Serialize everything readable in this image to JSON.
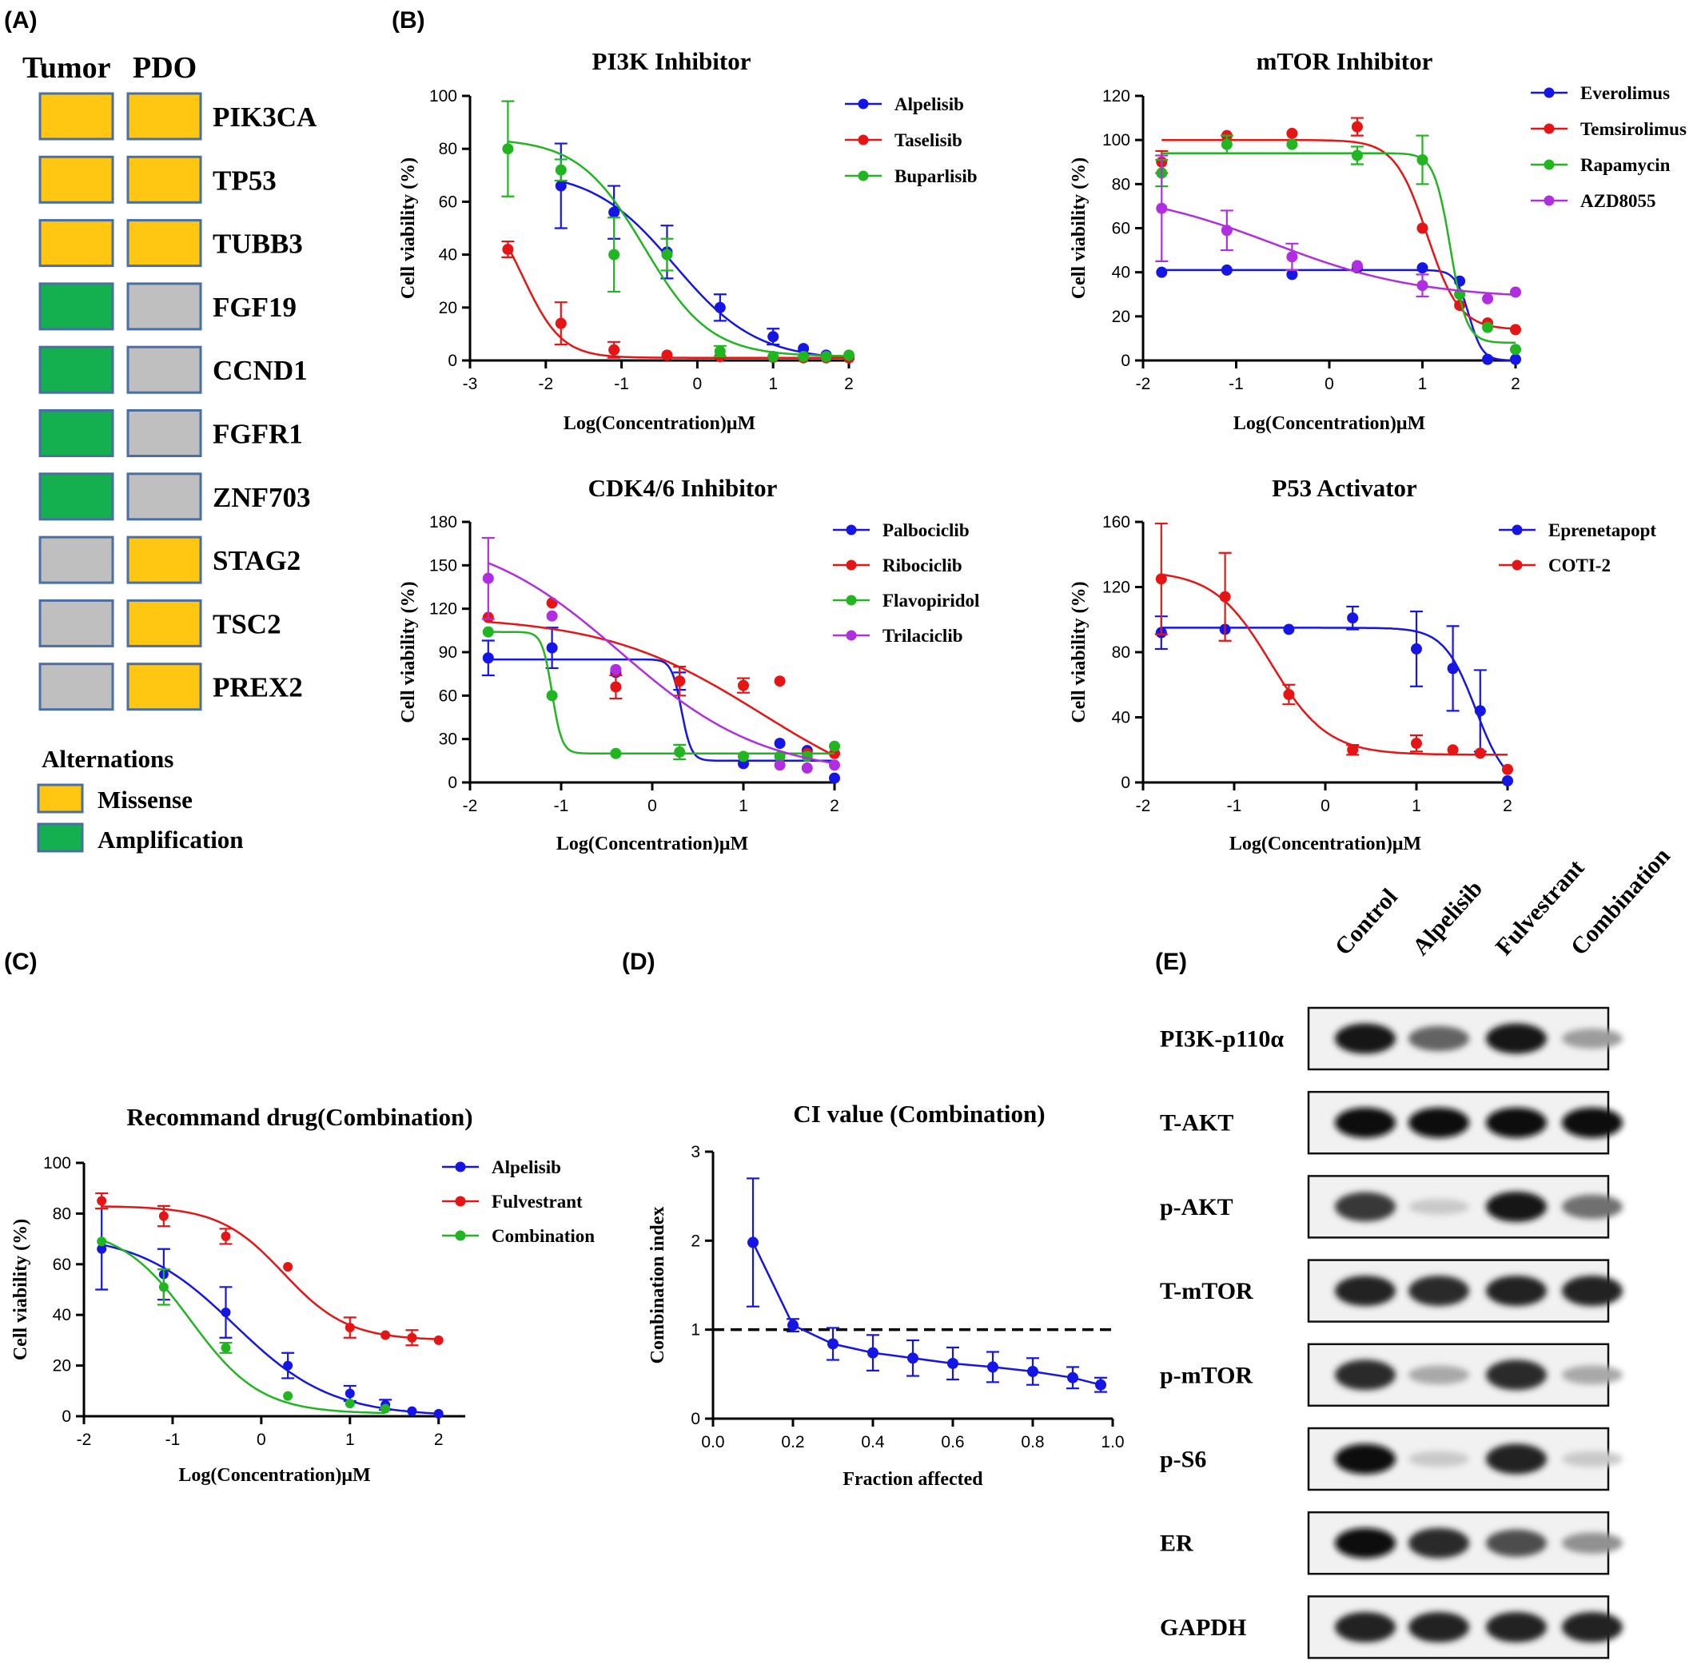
{
  "panel_labels": [
    "(A)",
    "(B)",
    "(C)",
    "(D)",
    "(E)"
  ],
  "panelA": {
    "header_tumor": "Tumor",
    "header_pdo": "PDO",
    "genes": [
      "PIK3CA",
      "TP53",
      "TUBB3",
      "FGF19",
      "CCND1",
      "FGFR1",
      "ZNF703",
      "STAG2",
      "TSC2",
      "PREX2"
    ],
    "tumor": [
      "Missense",
      "Missense",
      "Missense",
      "Amplification",
      "Amplification",
      "Amplification",
      "Amplification",
      "None",
      "None",
      "None"
    ],
    "pdo": [
      "Missense",
      "Missense",
      "Missense",
      "None",
      "None",
      "None",
      "None",
      "Missense",
      "Missense",
      "Missense"
    ],
    "legend_title": "Alternations",
    "legend": [
      {
        "label": "Missense",
        "key": "Missense"
      },
      {
        "label": "Amplification",
        "key": "Amplification"
      }
    ],
    "colors": {
      "Missense": "#FFC612",
      "Amplification": "#14B050",
      "None": "#BFBFBF",
      "border": "#4A6FA5"
    }
  },
  "chart_data": [
    {
      "id": "pi3k",
      "type": "scatter",
      "title": "PI3K Inhibitor",
      "xlabel": "Log(Concentration)μM",
      "ylabel": "Cell viability (%)",
      "xlim": [
        -3,
        2
      ],
      "ylim": [
        0,
        100
      ],
      "xticks": [
        -3,
        -2,
        -1,
        0,
        1,
        2
      ],
      "yticks": [
        0,
        20,
        40,
        60,
        80,
        100
      ],
      "legend_position": "top-right",
      "series": [
        {
          "name": "Alpelisib",
          "color": "#1515E6",
          "x": [
            -1.8,
            -1.1,
            -0.4,
            0.3,
            1.0,
            1.4,
            1.7,
            2.0
          ],
          "y": [
            66,
            56,
            41,
            20,
            9,
            4.5,
            2,
            1
          ],
          "err": [
            16,
            10,
            10,
            5,
            3,
            0,
            0,
            0
          ],
          "fit": {
            "top": 72,
            "bottom": 0,
            "logec50": -0.3,
            "hill": 0.8
          }
        },
        {
          "name": "Taselisib",
          "color": "#E61515",
          "x": [
            -2.5,
            -1.8,
            -1.1,
            -0.4,
            0.3,
            1.0,
            1.4,
            1.7,
            2.0
          ],
          "y": [
            42,
            14,
            4,
            2,
            1.5,
            1.2,
            1,
            1,
            1
          ],
          "err": [
            3,
            8,
            3,
            0,
            0,
            0,
            0,
            0,
            0
          ],
          "fit": {
            "top": 62,
            "bottom": 1,
            "logec50": -2.3,
            "hill": 1.7
          }
        },
        {
          "name": "Buparlisib",
          "color": "#22B522",
          "x": [
            -2.5,
            -1.8,
            -1.1,
            -0.4,
            0.3,
            1.0,
            1.4,
            1.7,
            2.0
          ],
          "y": [
            80,
            72,
            40,
            40,
            3.5,
            1.5,
            1.5,
            1.5,
            2
          ],
          "err": [
            18,
            4,
            14,
            6,
            2,
            0,
            0,
            0,
            0
          ],
          "fit": {
            "top": 84,
            "bottom": 1.5,
            "logec50": -0.7,
            "hill": 1.0
          }
        }
      ]
    },
    {
      "id": "mtor",
      "type": "scatter",
      "title": "mTOR Inhibitor",
      "xlabel": "Log(Concentration)μM",
      "ylabel": "Cell viability (%)",
      "xlim": [
        -2,
        2
      ],
      "ylim": [
        0,
        120
      ],
      "xticks": [
        -2,
        -1,
        0,
        1,
        2
      ],
      "yticks": [
        0,
        20,
        40,
        60,
        80,
        100,
        120
      ],
      "legend_position": "top-right",
      "series": [
        {
          "name": "Everolimus",
          "color": "#1515E6",
          "x": [
            -1.8,
            -1.1,
            -0.4,
            0.3,
            1.0,
            1.4,
            1.7,
            2.0
          ],
          "y": [
            40,
            41,
            39,
            42,
            42,
            36,
            0.5,
            0.5
          ],
          "err": [
            0,
            0,
            0,
            0,
            0,
            0,
            0,
            0
          ],
          "fit": {
            "top": 41,
            "bottom": 0,
            "logec50": 1.5,
            "hill": 6
          }
        },
        {
          "name": "Temsirolimus",
          "color": "#E61515",
          "x": [
            -1.8,
            -1.1,
            -0.4,
            0.3,
            1.0,
            1.4,
            1.7,
            2.0
          ],
          "y": [
            90,
            102,
            103,
            106,
            60,
            25,
            17,
            14
          ],
          "err": [
            5,
            0,
            0,
            4,
            0,
            0,
            0,
            0
          ],
          "fit": {
            "top": 100,
            "bottom": 14,
            "logec50": 1.05,
            "hill": 2.5
          }
        },
        {
          "name": "Rapamycin",
          "color": "#22B522",
          "x": [
            -1.8,
            -1.1,
            -0.4,
            0.3,
            1.0,
            1.4,
            1.7,
            2.0
          ],
          "y": [
            85,
            98,
            98,
            93,
            91,
            30,
            15,
            5
          ],
          "err": [
            6,
            4,
            0,
            4,
            11,
            0,
            0,
            0
          ],
          "fit": {
            "top": 94,
            "bottom": 8,
            "logec50": 1.3,
            "hill": 5
          }
        },
        {
          "name": "AZD8055",
          "color": "#B02EE0",
          "x": [
            -1.8,
            -1.1,
            -0.4,
            0.3,
            1.0,
            1.7,
            2.0
          ],
          "y": [
            69,
            59,
            47,
            43,
            34,
            28,
            31
          ],
          "err": [
            24,
            9,
            6,
            0,
            5,
            0,
            0
          ],
          "fit": {
            "top": 78,
            "bottom": 28,
            "logec50": -0.6,
            "hill": 0.55
          }
        }
      ]
    },
    {
      "id": "cdk",
      "type": "scatter",
      "title": "CDK4/6 Inhibitor",
      "xlabel": "Log(Concentration)μM",
      "ylabel": "Cell viability (%)",
      "xlim": [
        -2,
        2
      ],
      "ylim": [
        0,
        180
      ],
      "xticks": [
        -2,
        -1,
        0,
        1,
        2
      ],
      "yticks": [
        0,
        30,
        60,
        90,
        120,
        150,
        180
      ],
      "legend_position": "top-right",
      "series": [
        {
          "name": "Palbociclib",
          "color": "#1515E6",
          "x": [
            -1.8,
            -1.1,
            -0.4,
            0.3,
            1.0,
            1.4,
            1.7,
            2.0
          ],
          "y": [
            86,
            93,
            76,
            70,
            13,
            27,
            22,
            3
          ],
          "err": [
            12,
            14,
            0,
            6,
            0,
            0,
            0,
            0
          ],
          "fit": {
            "top": 85,
            "bottom": 15,
            "logec50": 0.32,
            "hill": 8
          }
        },
        {
          "name": "Ribociclib",
          "color": "#E61515",
          "x": [
            -1.8,
            -1.1,
            -0.4,
            0.3,
            1.0,
            1.4,
            1.7,
            2.0
          ],
          "y": [
            114,
            124,
            66,
            70,
            67,
            70,
            20,
            20
          ],
          "err": [
            0,
            0,
            8,
            10,
            5,
            0,
            0,
            0
          ],
          "fit": {
            "top": 115,
            "bottom": -20,
            "logec50": 1.2,
            "hill": 0.5
          }
        },
        {
          "name": "Flavopiridol",
          "color": "#22B522",
          "x": [
            -1.8,
            -1.1,
            -0.4,
            0.3,
            1.0,
            1.4,
            1.7,
            2.0
          ],
          "y": [
            104,
            60,
            20,
            21,
            18,
            18,
            18,
            25
          ],
          "err": [
            0,
            0,
            0,
            5,
            0,
            0,
            0,
            0
          ],
          "fit": {
            "top": 104,
            "bottom": 20,
            "logec50": -1.1,
            "hill": 8
          }
        },
        {
          "name": "Trilaciclib",
          "color": "#B02EE0",
          "x": [
            -1.8,
            -1.1,
            -0.4,
            1.4,
            1.7,
            2.0
          ],
          "y": [
            141,
            115,
            78,
            12,
            10,
            12
          ],
          "err": [
            28,
            0,
            0,
            0,
            0,
            0
          ],
          "fit": {
            "top": 175,
            "bottom": 5,
            "logec50": -0.35,
            "hill": 0.55
          }
        }
      ]
    },
    {
      "id": "p53",
      "type": "scatter",
      "title": "P53 Activator",
      "xlabel": "Log(Concentration)μM",
      "ylabel": "Cell viability (%)",
      "xlim": [
        -2,
        2
      ],
      "ylim": [
        0,
        160
      ],
      "xticks": [
        -2,
        -1,
        0,
        1,
        2
      ],
      "yticks": [
        0,
        40,
        80,
        120,
        160
      ],
      "legend_position": "top-right",
      "series": [
        {
          "name": "Eprenetapopt",
          "color": "#1515E6",
          "x": [
            -1.8,
            -1.1,
            -0.4,
            0.3,
            1.0,
            1.4,
            1.7,
            2.0
          ],
          "y": [
            92,
            94,
            94,
            101,
            82,
            70,
            44,
            1
          ],
          "err": [
            10,
            0,
            0,
            7,
            23,
            26,
            25,
            0
          ],
          "fit": {
            "top": 95,
            "bottom": -5,
            "logec50": 1.65,
            "hill": 2.5
          }
        },
        {
          "name": "COTI-2",
          "color": "#E61515",
          "x": [
            -1.8,
            -1.1,
            -0.4,
            0.3,
            1.0,
            1.4,
            1.7,
            2.0
          ],
          "y": [
            125,
            114,
            54,
            20,
            24,
            20,
            18,
            8
          ],
          "err": [
            34,
            27,
            6,
            3,
            5,
            0,
            0,
            0
          ],
          "fit": {
            "top": 130,
            "bottom": 17,
            "logec50": -0.6,
            "hill": 1.4
          }
        }
      ]
    },
    {
      "id": "combo",
      "type": "scatter",
      "title": "Recommand drug(Combination)",
      "xlabel": "Log(Concentration)μM",
      "ylabel": "Cell viability (%)",
      "xlim": [
        -2,
        2.3
      ],
      "ylim": [
        0,
        100
      ],
      "xticks": [
        -2,
        -1,
        0,
        1,
        2
      ],
      "yticks": [
        0,
        20,
        40,
        60,
        80,
        100
      ],
      "legend_position": "top-right",
      "series": [
        {
          "name": "Alpelisib",
          "color": "#1515E6",
          "x": [
            -1.8,
            -1.1,
            -0.4,
            0.3,
            1.0,
            1.4,
            1.7,
            2.0
          ],
          "y": [
            66,
            56,
            41,
            20,
            9,
            4.5,
            2,
            1
          ],
          "err": [
            16,
            10,
            10,
            5,
            3,
            2,
            0,
            0
          ],
          "fit": {
            "top": 72,
            "bottom": 0,
            "logec50": -0.3,
            "hill": 0.8
          }
        },
        {
          "name": "Fulvestrant",
          "color": "#E61515",
          "x": [
            -1.8,
            -1.1,
            -0.4,
            0.3,
            1.0,
            1.4,
            1.7,
            2.0
          ],
          "y": [
            85,
            79,
            71,
            59,
            35,
            32,
            31,
            30
          ],
          "err": [
            3,
            4,
            3,
            0,
            4,
            0,
            3,
            0
          ],
          "fit": {
            "top": 83,
            "bottom": 30,
            "logec50": 0.25,
            "hill": 1.2
          }
        },
        {
          "name": "Combination",
          "color": "#22B522",
          "x": [
            -1.8,
            -1.1,
            -0.4,
            0.3,
            1.0,
            1.4
          ],
          "y": [
            69,
            51,
            27,
            8,
            5,
            3
          ],
          "err": [
            0,
            7,
            2,
            0,
            0,
            0
          ],
          "fit": {
            "top": 75,
            "bottom": 1,
            "logec50": -0.8,
            "hill": 1.1
          }
        }
      ]
    },
    {
      "id": "ci",
      "type": "line",
      "title": "CI value (Combination)",
      "xlabel": "Fraction affected",
      "ylabel": "Combination index",
      "xlim": [
        0,
        1.0
      ],
      "ylim": [
        0,
        3
      ],
      "xticks": [
        0.0,
        0.2,
        0.4,
        0.6,
        0.8,
        1.0
      ],
      "xtick_labels": [
        "0.0",
        "0.2",
        "0.4",
        "0.6",
        "0.8",
        "1.0"
      ],
      "yticks": [
        0,
        1,
        2,
        3
      ],
      "reference_line": 1,
      "series": [
        {
          "color": "#1515E6",
          "x": [
            0.1,
            0.2,
            0.3,
            0.4,
            0.5,
            0.6,
            0.7,
            0.8,
            0.9,
            0.97
          ],
          "y": [
            1.98,
            1.05,
            0.84,
            0.74,
            0.68,
            0.62,
            0.58,
            0.53,
            0.46,
            0.38
          ],
          "err": [
            0.72,
            0.07,
            0.18,
            0.2,
            0.2,
            0.18,
            0.17,
            0.15,
            0.12,
            0.08
          ]
        }
      ]
    }
  ],
  "panelE": {
    "columns": [
      "Control",
      "Alpelisib",
      "Fulvestrant",
      "Combination"
    ],
    "proteins": [
      "PI3K-p110α",
      "T-AKT",
      "p-AKT",
      "T-mTOR",
      "p-mTOR",
      "p-S6",
      "ER",
      "GAPDH"
    ],
    "intensity": [
      [
        0.95,
        0.6,
        0.95,
        0.35
      ],
      [
        1.0,
        1.0,
        1.0,
        1.0
      ],
      [
        0.8,
        0.15,
        0.95,
        0.55
      ],
      [
        0.9,
        0.85,
        0.9,
        0.9
      ],
      [
        0.85,
        0.3,
        0.85,
        0.3
      ],
      [
        1.0,
        0.15,
        0.9,
        0.15
      ],
      [
        1.0,
        0.85,
        0.7,
        0.4
      ],
      [
        0.9,
        0.9,
        0.9,
        0.9
      ]
    ]
  }
}
